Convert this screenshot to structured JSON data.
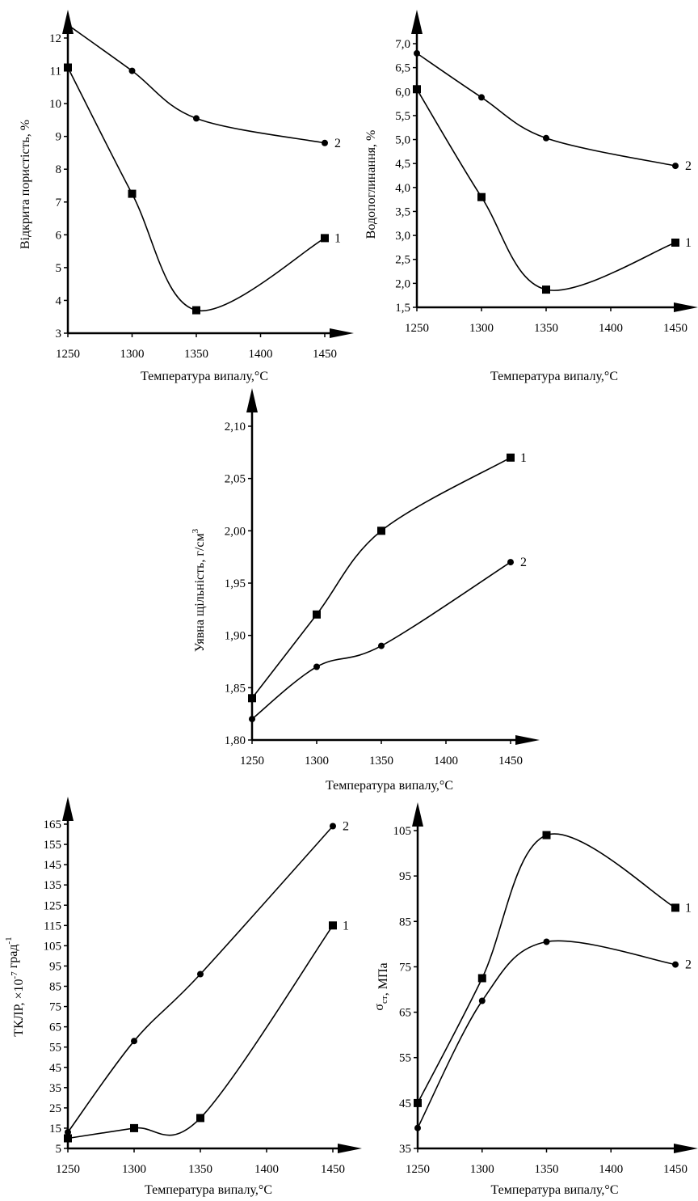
{
  "chart_data": [
    {
      "type": "line",
      "ylabel": "Відкрита пористість, %",
      "xlabel": "Температура випалу,",
      "x_unit": "°C",
      "x_ticks": [
        1250,
        1300,
        1350,
        1400,
        1450
      ],
      "y_ticks": [
        "3",
        "4",
        "5",
        "6",
        "7",
        "8",
        "9",
        "10",
        "11",
        "12"
      ],
      "xlim": [
        1250,
        1450
      ],
      "ylim": [
        3,
        12.5
      ],
      "grid": false,
      "series": [
        {
          "name": "1",
          "marker": "square",
          "x": [
            1250,
            1300,
            1350,
            1450
          ],
          "y": [
            11.1,
            7.25,
            3.7,
            5.9
          ]
        },
        {
          "name": "2",
          "marker": "circle",
          "x": [
            1250,
            1300,
            1350,
            1450
          ],
          "y": [
            12.4,
            11.0,
            9.55,
            8.8
          ]
        }
      ]
    },
    {
      "type": "line",
      "ylabel": "Водопоглинання, %",
      "xlabel": "Температура випалу,",
      "x_unit": "°C",
      "x_ticks": [
        1250,
        1300,
        1350,
        1400,
        1450
      ],
      "y_ticks": [
        "1,5",
        "2,0",
        "2,5",
        "3,0",
        "3,5",
        "4,0",
        "4,5",
        "5,0",
        "5,5",
        "6,0",
        "6,5",
        "7,0"
      ],
      "xlim": [
        1250,
        1450
      ],
      "ylim": [
        1.5,
        7.2
      ],
      "grid": false,
      "series": [
        {
          "name": "1",
          "marker": "square",
          "x": [
            1250,
            1300,
            1350,
            1450
          ],
          "y": [
            6.05,
            3.8,
            1.87,
            2.85
          ]
        },
        {
          "name": "2",
          "marker": "circle",
          "x": [
            1250,
            1300,
            1350,
            1450
          ],
          "y": [
            6.8,
            5.88,
            5.03,
            4.45
          ]
        }
      ]
    },
    {
      "type": "line",
      "ylabel": "Уявна щільність, г/см",
      "ylabel_sup": "3",
      "xlabel": "Температура випалу,",
      "x_unit": "°C",
      "x_ticks": [
        1250,
        1300,
        1350,
        1400,
        1450
      ],
      "y_ticks": [
        "1,80",
        "1,85",
        "1,90",
        "1,95",
        "2,00",
        "2,05",
        "2,10"
      ],
      "xlim": [
        1250,
        1450
      ],
      "ylim": [
        1.8,
        2.1
      ],
      "grid": false,
      "series": [
        {
          "name": "1",
          "marker": "square",
          "x": [
            1250,
            1300,
            1350,
            1450
          ],
          "y": [
            1.84,
            1.92,
            2.0,
            2.07
          ]
        },
        {
          "name": "2",
          "marker": "circle",
          "x": [
            1250,
            1300,
            1350,
            1450
          ],
          "y": [
            1.82,
            1.87,
            1.89,
            1.97
          ]
        }
      ]
    },
    {
      "type": "line",
      "ylabel": "ТКЛР, ×10",
      "ylabel_sup": "-7",
      "ylabel_tail": " град",
      "ylabel_sup2": "-1",
      "xlabel": "Температура випалу,",
      "x_unit": "°C",
      "x_ticks": [
        1250,
        1300,
        1350,
        1400,
        1450
      ],
      "y_ticks": [
        "5",
        "15",
        "25",
        "35",
        "45",
        "55",
        "65",
        "75",
        "85",
        "95",
        "105",
        "115",
        "125",
        "135",
        "145",
        "155",
        "165"
      ],
      "xlim": [
        1250,
        1450
      ],
      "ylim": [
        5,
        168
      ],
      "grid": false,
      "series": [
        {
          "name": "1",
          "marker": "square",
          "x": [
            1250,
            1300,
            1350,
            1450
          ],
          "y": [
            10,
            15,
            20,
            115
          ]
        },
        {
          "name": "2",
          "marker": "circle",
          "x": [
            1250,
            1300,
            1350,
            1450
          ],
          "y": [
            13,
            58,
            91,
            164
          ]
        }
      ]
    },
    {
      "type": "line",
      "ylabel": "σ",
      "ylabel_sub": "ст",
      "ylabel_tail": ", МПа",
      "xlabel": "Температура випалу,",
      "x_unit": "°C",
      "x_ticks": [
        1250,
        1300,
        1350,
        1400,
        1450
      ],
      "y_ticks": [
        "35",
        "45",
        "55",
        "65",
        "75",
        "85",
        "95",
        "105"
      ],
      "xlim": [
        1250,
        1450
      ],
      "ylim": [
        35,
        107
      ],
      "grid": false,
      "series": [
        {
          "name": "1",
          "marker": "square",
          "x": [
            1250,
            1300,
            1350,
            1450
          ],
          "y": [
            45,
            72.5,
            104,
            88
          ]
        },
        {
          "name": "2",
          "marker": "circle",
          "x": [
            1250,
            1300,
            1350,
            1450
          ],
          "y": [
            39.5,
            67.5,
            80.5,
            75.5
          ]
        }
      ]
    }
  ]
}
